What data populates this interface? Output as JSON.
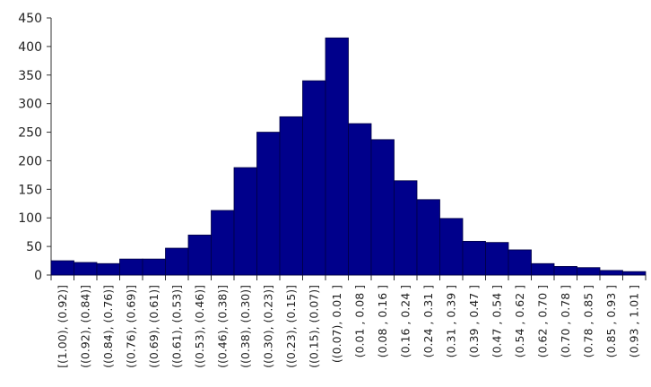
{
  "chart_data": {
    "type": "bar",
    "categories": [
      "[(1.00), (0.92)]",
      "((0.92), (0.84)]",
      "((0.84), (0.76)]",
      "((0.76), (0.69)]",
      "((0.69), (0.61)]",
      "((0.61), (0.53)]",
      "((0.53), (0.46)]",
      "((0.46), (0.38)]",
      "((0.38), (0.30)]",
      "((0.30), (0.23)]",
      "((0.23), (0.15)]",
      "((0.15), (0.07)]",
      "((0.07), 0.01 ]",
      "(0.01 , 0.08 ]",
      "(0.08 , 0.16 ]",
      "(0.16 , 0.24 ]",
      "(0.24 , 0.31 ]",
      "(0.31 , 0.39 ]",
      "(0.39 , 0.47 ]",
      "(0.47 , 0.54 ]",
      "(0.54 , 0.62 ]",
      "(0.62 , 0.70 ]",
      "(0.70 , 0.78 ]",
      "(0.78 , 0.85 ]",
      "(0.85 , 0.93 ]",
      "(0.93 , 1.01 ]"
    ],
    "values": [
      25,
      22,
      20,
      28,
      28,
      47,
      70,
      113,
      188,
      250,
      277,
      340,
      415,
      265,
      237,
      165,
      132,
      99,
      59,
      57,
      44,
      20,
      15,
      13,
      8,
      6
    ],
    "color": "#00008b",
    "ylim": [
      0,
      450
    ],
    "yticks": [
      0,
      50,
      100,
      150,
      200,
      250,
      300,
      350,
      400,
      450
    ],
    "grid": false
  }
}
